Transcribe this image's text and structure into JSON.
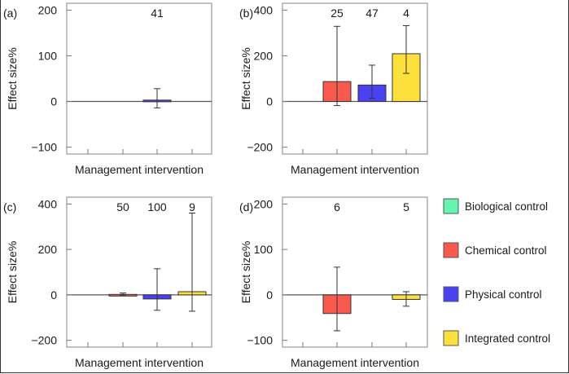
{
  "chart_data": [
    {
      "type": "bar",
      "panel_label": "(a)",
      "xlabel": "Management intervention",
      "ylabel": "Effect size%",
      "ylim": [
        -115,
        215
      ],
      "yticks": [
        -100,
        0,
        100,
        200
      ],
      "categories": [
        "Biological control",
        "Chemical control",
        "Physical control",
        "Integrated control"
      ],
      "bars": [
        {
          "category": "Physical control",
          "value": 3,
          "ci": [
            -14,
            28
          ],
          "n": "41"
        }
      ]
    },
    {
      "type": "bar",
      "panel_label": "(b)",
      "xlabel": "Management intervention",
      "ylabel": "Effect size%",
      "ylim": [
        -230,
        430
      ],
      "yticks": [
        -200,
        0,
        200,
        400
      ],
      "categories": [
        "Biological control",
        "Chemical control",
        "Physical control",
        "Integrated control"
      ],
      "bars": [
        {
          "category": "Chemical control",
          "value": 87,
          "ci": [
            -18,
            329
          ],
          "n": "25"
        },
        {
          "category": "Physical control",
          "value": 72,
          "ci": [
            14,
            159
          ],
          "n": "47"
        },
        {
          "category": "Integrated control",
          "value": 209,
          "ci": [
            123,
            332
          ],
          "n": "4"
        }
      ]
    },
    {
      "type": "bar",
      "panel_label": "(c)",
      "xlabel": "Management intervention",
      "ylabel": "Effect size%",
      "ylim": [
        -230,
        430
      ],
      "yticks": [
        -200,
        0,
        200,
        400
      ],
      "categories": [
        "Biological control",
        "Chemical control",
        "Physical control",
        "Integrated control"
      ],
      "bars": [
        {
          "category": "Chemical control",
          "value": 2,
          "ci": [
            -1,
            8
          ],
          "n": "50"
        },
        {
          "category": "Physical control",
          "value": -18,
          "ci": [
            -68,
            115
          ],
          "n": "100"
        },
        {
          "category": "Integrated control",
          "value": 14,
          "ci": [
            -72,
            360
          ],
          "n": "9"
        }
      ]
    },
    {
      "type": "bar",
      "panel_label": "(d)",
      "xlabel": "Management intervention",
      "ylabel": "Effect size%",
      "ylim": [
        -115,
        215
      ],
      "yticks": [
        -100,
        0,
        100,
        200
      ],
      "categories": [
        "Biological control",
        "Chemical control",
        "Physical control",
        "Integrated control"
      ],
      "bars": [
        {
          "category": "Chemical control",
          "value": -41,
          "ci": [
            -79,
            61
          ],
          "n": "6"
        },
        {
          "category": "Integrated control",
          "value": -10,
          "ci": [
            -25,
            7
          ],
          "n": "5"
        }
      ]
    }
  ],
  "legend": {
    "placement": "right",
    "items": [
      {
        "label": "Biological control",
        "color": "#66f5b0"
      },
      {
        "label": "Chemical control",
        "color": "#fa5a4e"
      },
      {
        "label": "Physical control",
        "color": "#4a42f2"
      },
      {
        "label": "Integrated control",
        "color": "#fde03c"
      }
    ]
  }
}
